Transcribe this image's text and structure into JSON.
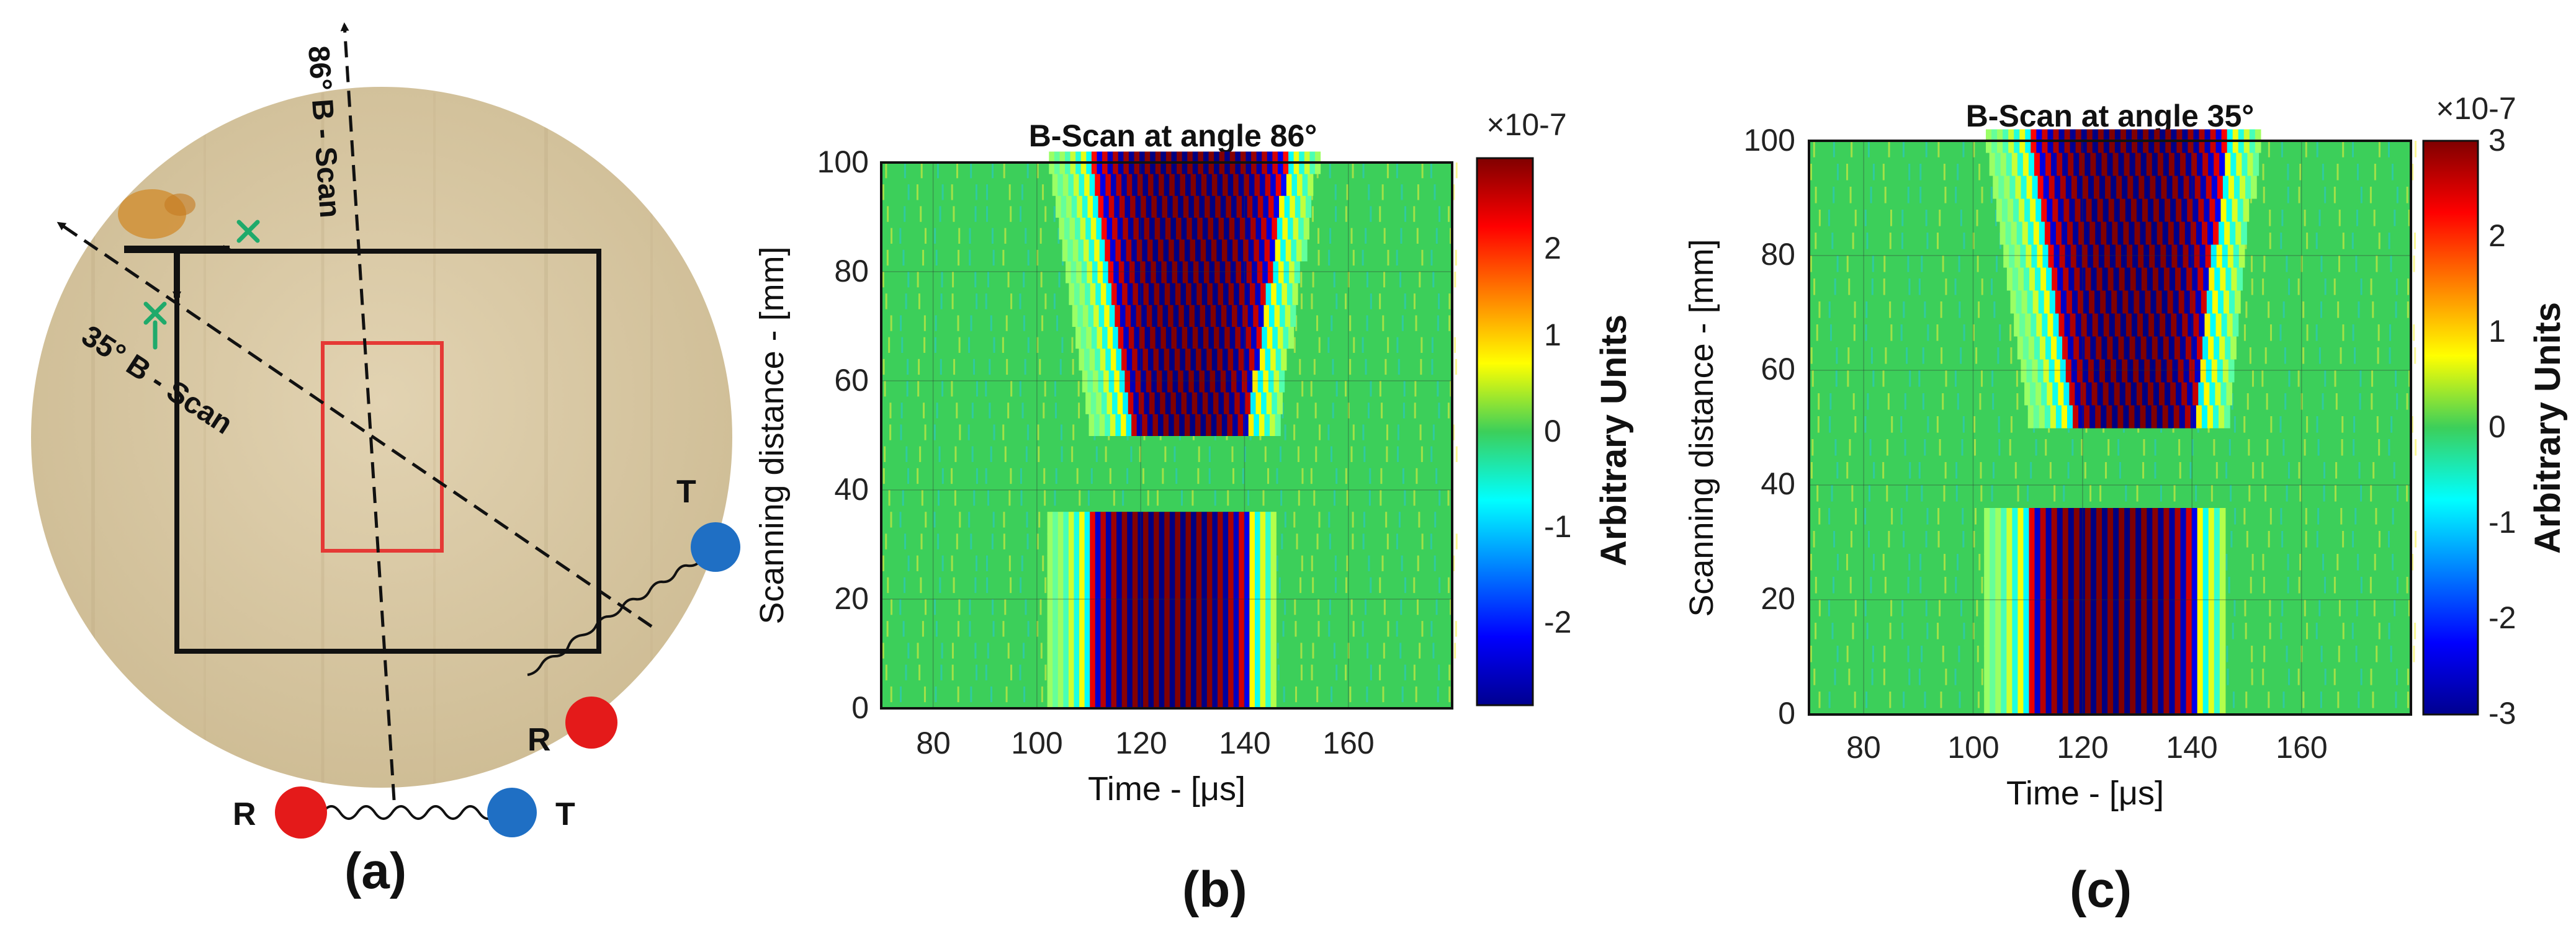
{
  "panel_labels": {
    "a": "(a)",
    "b": "(b)",
    "c": "(c)"
  },
  "diagram": {
    "scan_86_label": "86° B - Scan",
    "scan_35_label": "35° B - Scan",
    "receiver_label": "R",
    "transmitter_label": "T",
    "colors": {
      "receiver": "#e41a1a",
      "transmitter": "#1f6fc4",
      "outer_square": "#111111",
      "defect_box": "#e53935",
      "marks": "#1faa6b",
      "stain": "#d08a2a"
    }
  },
  "colorbar_ticks": {
    "b": [
      "2",
      "1",
      "0",
      "-1",
      "-2"
    ],
    "c": [
      "3",
      "2",
      "1",
      "0",
      "-1",
      "-2",
      "-3"
    ]
  },
  "chart_data": [
    {
      "type": "heatmap",
      "title": "B-Scan at angle 86°",
      "xlabel": "Time - [μs]",
      "ylabel": "Scanning distance - [mm]",
      "xlim": [
        70,
        180
      ],
      "ylim": [
        0,
        100
      ],
      "xticks": [
        "80",
        "100",
        "120",
        "140",
        "160"
      ],
      "yticks": [
        "0",
        "20",
        "40",
        "60",
        "80",
        "100"
      ],
      "colorbar": {
        "label": "Arbitrary Units",
        "exponent": "×10-7",
        "range": [
          -2.8,
          2.8
        ]
      },
      "features": [
        {
          "name": "upper-band",
          "y_range": [
            50,
            100
          ],
          "t_start_at_y50": 118,
          "t_start_at_y100": 110,
          "t_end_at_y50": 140,
          "t_end_at_y100": 148
        },
        {
          "name": "lower-band",
          "y_range": [
            0,
            35
          ],
          "t_start": 110,
          "t_end": 140
        }
      ]
    },
    {
      "type": "heatmap",
      "title": "B-Scan at angle 35°",
      "xlabel": "Time - [μs]",
      "ylabel": "Scanning distance - [mm]",
      "xlim": [
        70,
        180
      ],
      "ylim": [
        0,
        100
      ],
      "xticks": [
        "80",
        "100",
        "120",
        "140",
        "160"
      ],
      "yticks": [
        "0",
        "20",
        "40",
        "60",
        "80",
        "100"
      ],
      "colorbar": {
        "label": "Arbitrary Units",
        "exponent": "×10-7",
        "range": [
          -3,
          3
        ]
      },
      "features": [
        {
          "name": "upper-band",
          "y_range": [
            50,
            100
          ],
          "t_start_at_y50": 118,
          "t_start_at_y100": 110,
          "t_end_at_y50": 140,
          "t_end_at_y100": 146
        },
        {
          "name": "lower-band",
          "y_range": [
            0,
            35
          ],
          "t_start": 110,
          "t_end": 140
        }
      ]
    }
  ]
}
